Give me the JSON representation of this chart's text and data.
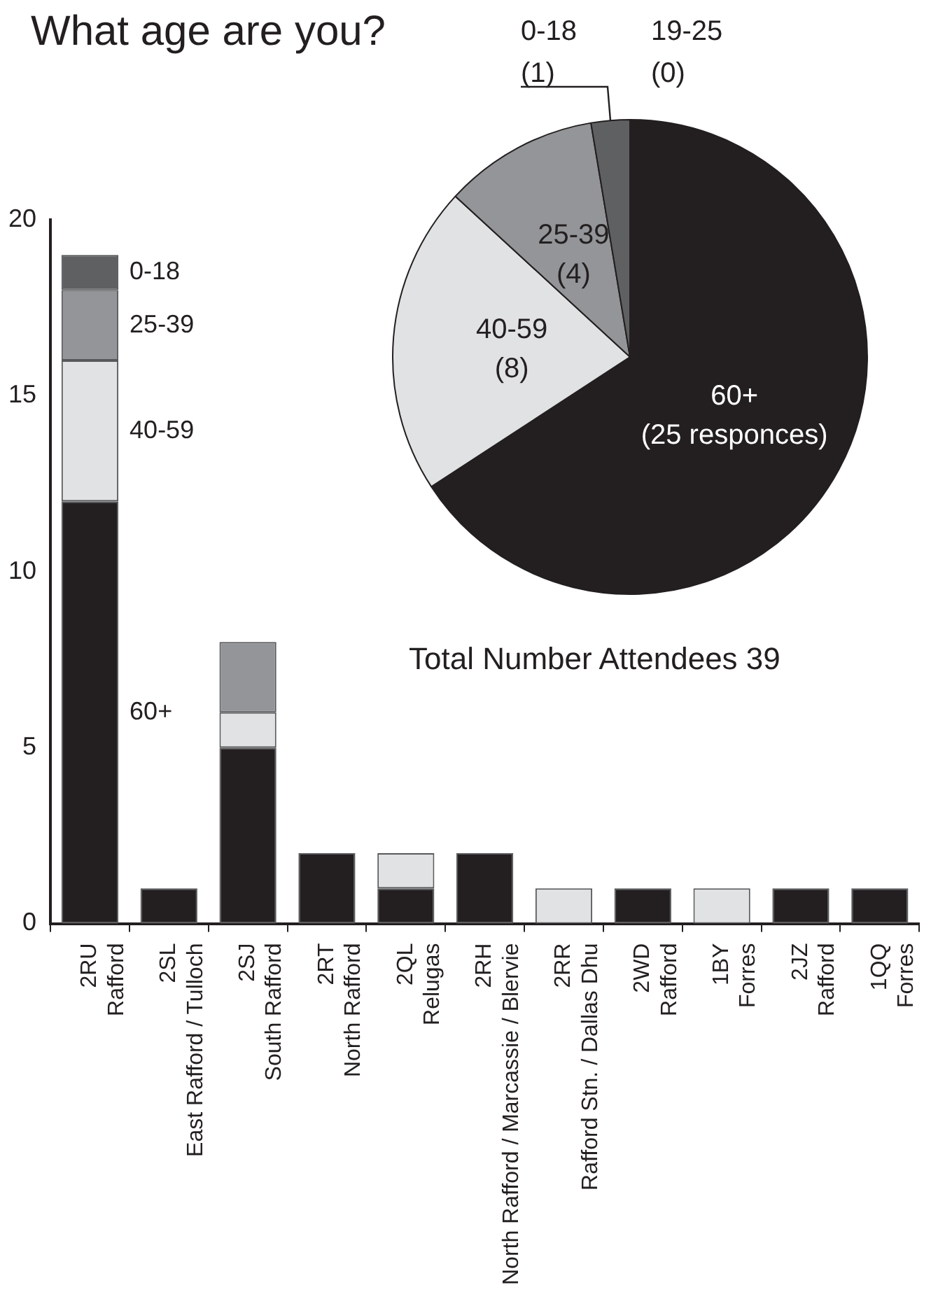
{
  "chart_data": [
    {
      "type": "pie",
      "title": "What age are you?",
      "categories": [
        "60+",
        "40-59",
        "25-39",
        "0-18",
        "19-25"
      ],
      "values": [
        25,
        8,
        4,
        1,
        0
      ],
      "colors": [
        "#231f20",
        "#e1e2e3",
        "#939598",
        "#5f6062",
        "#bcbec0"
      ],
      "value_labels": [
        "(25 responces)",
        "(8)",
        "(4)",
        "(1)",
        "(0)"
      ],
      "annotations": [
        "Total Number Attendees 39"
      ]
    },
    {
      "type": "bar",
      "stacked": true,
      "categories": [
        "2RU\nRafford",
        "2SL\nEast Rafford / Tulloch",
        "2SJ\nSouth Rafford",
        "2RT\nNorth Rafford",
        "2QL\nRelugas",
        "2RH\nNorth Rafford / Marcassie / Blervie",
        "2RR\nRafford Stn. / Dallas Dhu",
        "2WD\nRafford",
        "1BY\nForres",
        "2JZ\nRafford",
        "1QQ\nForres"
      ],
      "ylim": [
        0,
        20
      ],
      "yticks": [
        0,
        5,
        10,
        15,
        20
      ],
      "series": [
        {
          "name": "60+",
          "color": "#231f20",
          "values": [
            12,
            1,
            5,
            2,
            1,
            2,
            0,
            1,
            0,
            1,
            1
          ]
        },
        {
          "name": "40-59",
          "color": "#e1e2e3",
          "values": [
            4,
            0,
            1,
            0,
            1,
            0,
            1,
            0,
            1,
            0,
            0
          ]
        },
        {
          "name": "25-39",
          "color": "#939598",
          "values": [
            2,
            0,
            2,
            0,
            0,
            0,
            0,
            0,
            0,
            0,
            0
          ]
        },
        {
          "name": "0-18",
          "color": "#5f6062",
          "values": [
            1,
            0,
            0,
            0,
            0,
            0,
            0,
            0,
            0,
            0,
            0
          ]
        }
      ]
    }
  ]
}
